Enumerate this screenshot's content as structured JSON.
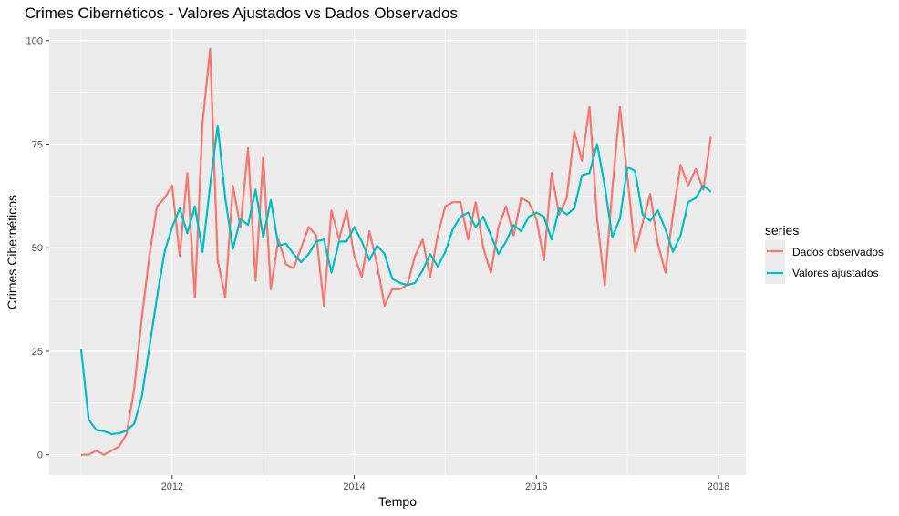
{
  "chart_data": {
    "type": "line",
    "title": "Crimes Cibernéticos - Valores Ajustados vs Dados Observados",
    "xlabel": "Tempo",
    "ylabel": "Crimes Cibernéticos",
    "xlim": [
      2010.65,
      2018.3
    ],
    "ylim": [
      -4.9,
      102.8
    ],
    "x_ticks": [
      2012,
      2014,
      2016,
      2018
    ],
    "x_tick_labels": [
      "2012",
      "2014",
      "2016",
      "2018"
    ],
    "y_ticks": [
      0,
      25,
      50,
      75,
      100
    ],
    "y_tick_labels": [
      "0",
      "25",
      "50",
      "75",
      "100"
    ],
    "grid": true,
    "legend": {
      "title": "series",
      "position": "right"
    },
    "x_start": 2011,
    "x_step": 0.08333333,
    "series": [
      {
        "name": "Dados observados",
        "color": "#F8766D",
        "values": [
          0,
          0,
          1,
          0,
          1,
          2,
          5,
          16,
          33,
          48,
          60,
          62,
          65,
          48,
          68,
          38,
          80,
          98,
          47,
          38,
          65,
          55,
          74,
          42,
          72,
          40,
          52,
          46,
          45,
          50,
          55,
          53,
          36,
          59,
          52,
          59,
          48,
          43,
          54,
          46,
          36,
          40,
          40,
          41,
          48,
          52,
          43,
          53,
          60,
          61,
          61,
          52,
          61,
          50,
          44,
          55,
          60,
          53,
          62,
          61,
          57,
          47,
          68,
          58,
          62,
          78,
          71,
          84,
          57,
          41,
          64,
          84,
          67,
          49,
          56,
          63,
          51,
          44,
          58,
          70,
          65,
          69,
          64,
          77
        ]
      },
      {
        "name": "Valores ajustados",
        "color": "#00BFC4",
        "values": [
          25.5,
          8.5,
          6,
          5.7,
          5,
          5.2,
          5.8,
          7.5,
          14,
          26,
          38,
          49,
          55,
          59.5,
          53.5,
          60,
          49,
          65,
          79.5,
          62,
          49.7,
          57,
          55.5,
          64,
          52.5,
          61.5,
          50.5,
          51,
          48.5,
          46.5,
          48.5,
          51.5,
          52,
          44,
          51.5,
          51.5,
          55,
          51.5,
          47,
          50.5,
          48.5,
          42.5,
          41.5,
          41,
          41.5,
          44.5,
          48.5,
          45.5,
          49,
          54.5,
          57.5,
          58.5,
          55,
          57.5,
          53,
          48.5,
          51.5,
          55.5,
          54,
          57.5,
          58.5,
          57.5,
          52,
          59.5,
          58,
          59.5,
          67.5,
          68,
          75,
          65,
          52.5,
          57,
          69.5,
          68.5,
          58,
          56.5,
          59,
          54.5,
          49,
          53,
          61,
          62,
          65,
          63.5
        ]
      }
    ]
  }
}
